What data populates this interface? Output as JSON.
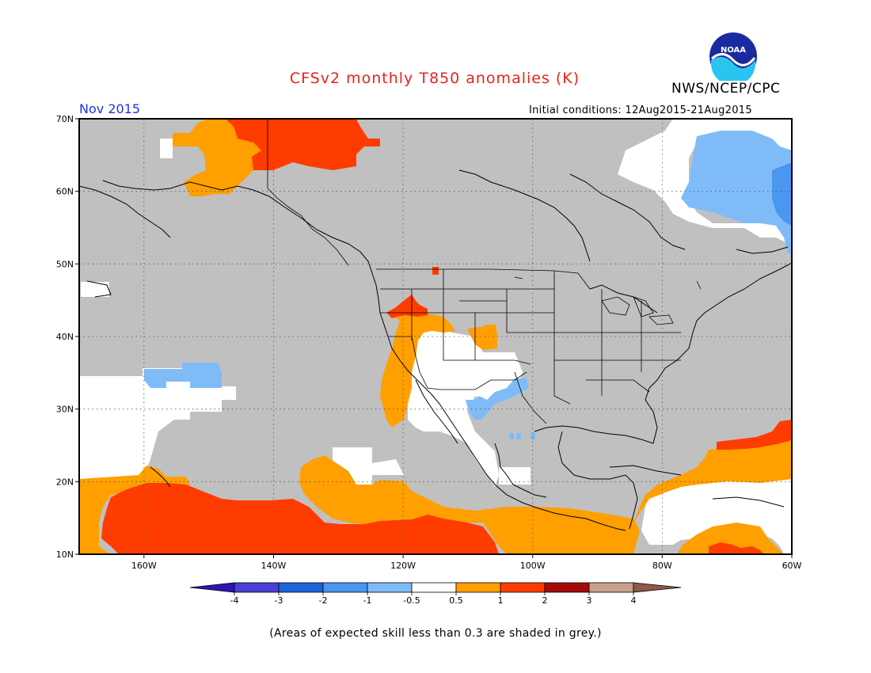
{
  "header": {
    "title": "CFSv2 monthly T850 anomalies (K)",
    "agency": "NWS/NCEP/CPC",
    "logo_text": "NOAA",
    "period": "Nov 2015",
    "initial_conditions": "Initial conditions: 12Aug2015-21Aug2015"
  },
  "map": {
    "projection": "lat-lon",
    "lon_range": [
      -170,
      -60
    ],
    "lat_range": [
      10,
      70
    ],
    "lat_labels": [
      "70N",
      "60N",
      "50N",
      "40N",
      "30N",
      "20N",
      "10N"
    ],
    "lon_labels": [
      "160W",
      "140W",
      "120W",
      "100W",
      "80W",
      "60W"
    ],
    "lat_ticks": [
      70,
      60,
      50,
      40,
      30,
      20,
      10
    ],
    "lon_ticks": [
      -160,
      -140,
      -120,
      -100,
      -80,
      -60
    ],
    "background_grey": "#c0c0c0",
    "gridlines": "dotted"
  },
  "legend": {
    "tick_labels": [
      "-4",
      "-3",
      "-2",
      "-1",
      "-0.5",
      "0.5",
      "1",
      "2",
      "3",
      "4"
    ],
    "colors": [
      "#2e13b3",
      "#4a3fd6",
      "#1e64d9",
      "#4a96f0",
      "#7fbcf7",
      "#ffffff",
      "#ff9f00",
      "#ff3c00",
      "#a50a0a",
      "#c8a08c",
      "#8c5a46"
    ]
  },
  "footnote": "(Areas of expected skill less than 0.3 are shaded in grey.)",
  "colors": {
    "title": "#e8231a",
    "period": "#2133e6",
    "grey": "#c0c0c0",
    "white": "#ffffff",
    "orange": "#ff9f00",
    "red": "#ff3c00",
    "lightblue": "#7fbcf7",
    "blue": "#4a96f0"
  }
}
